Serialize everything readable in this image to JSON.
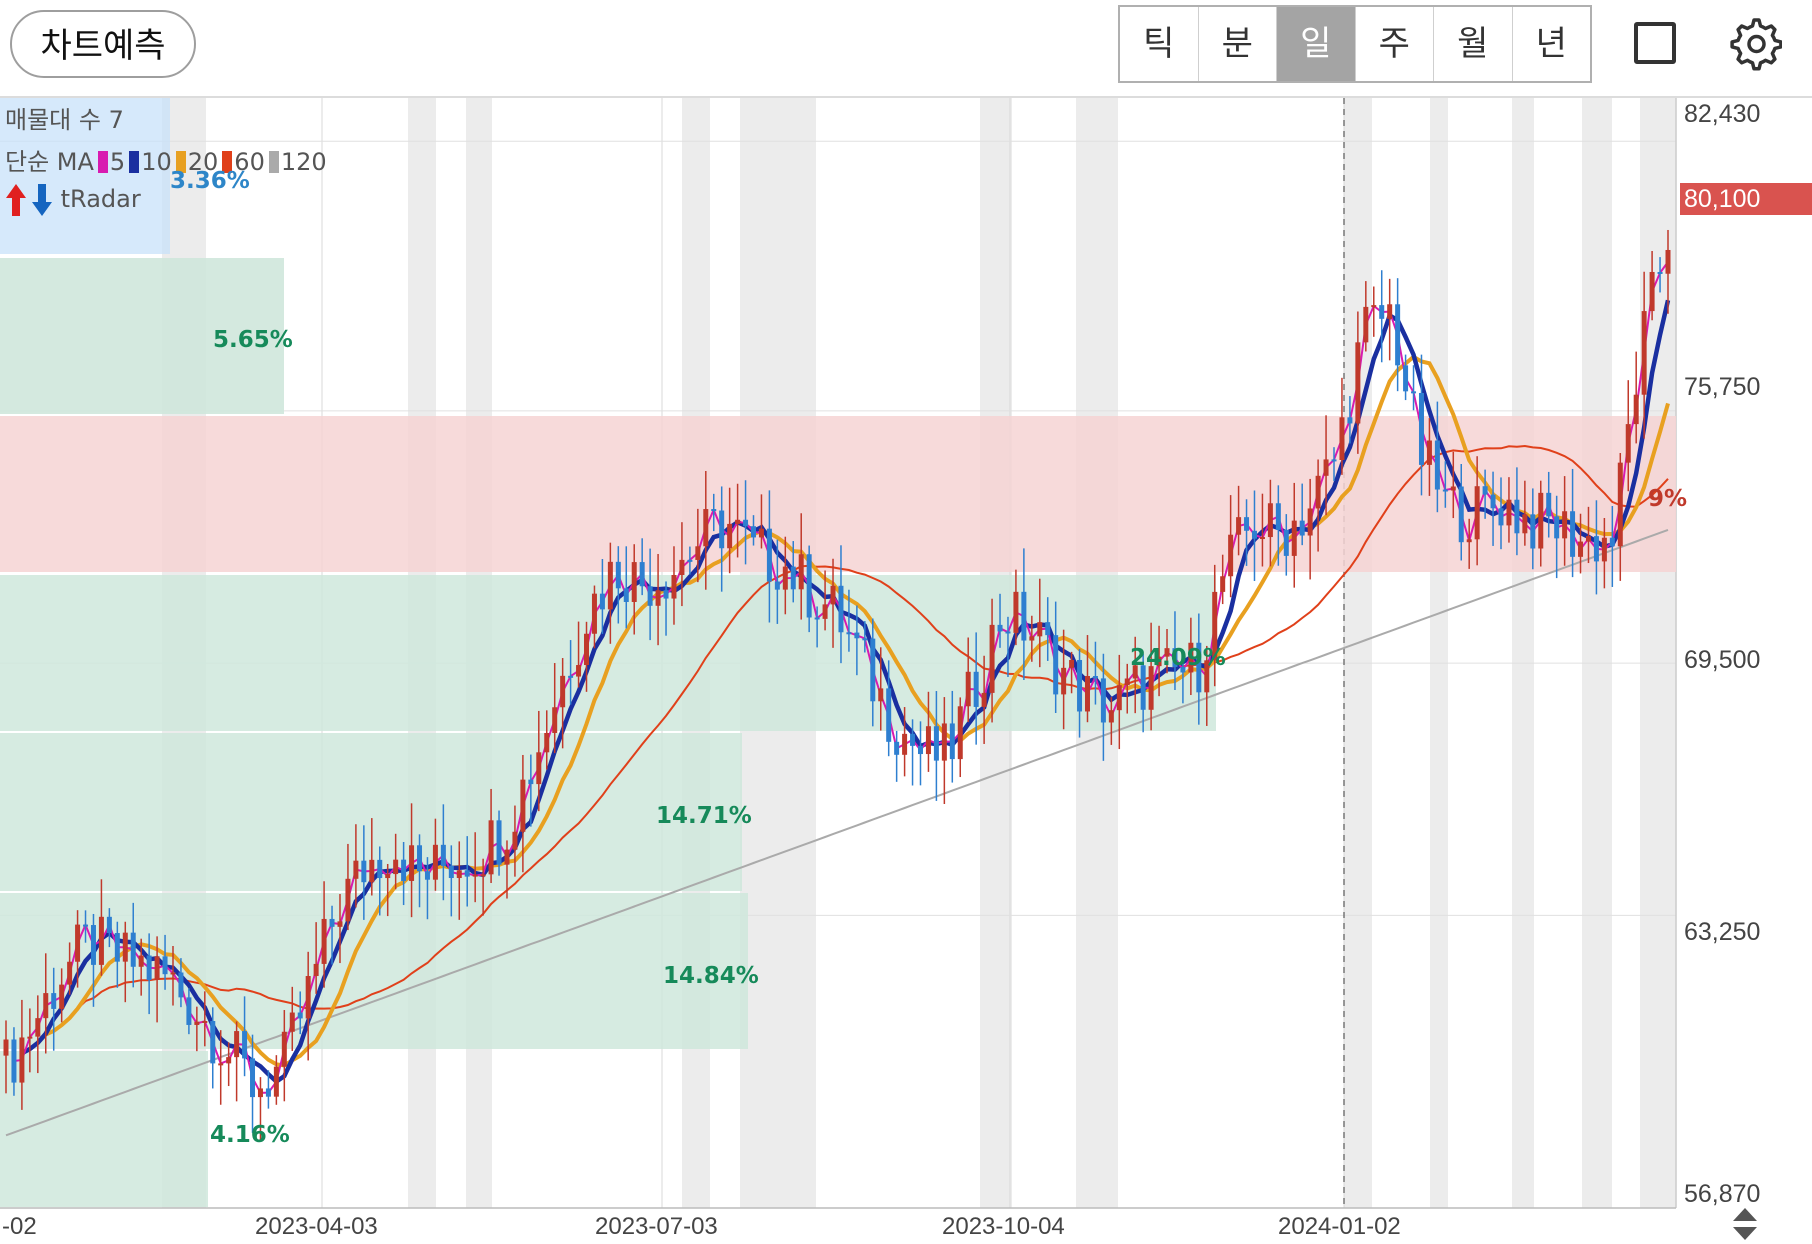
{
  "toolbar": {
    "predict_label": "차트예측",
    "periods": [
      "틱",
      "분",
      "일",
      "주",
      "월",
      "년"
    ],
    "active_period": "일",
    "layout_icon": "square-icon",
    "settings_icon": "gear-icon"
  },
  "legend": {
    "volume_profile": "매물대 수 7",
    "ma_prefix": "단순 MA",
    "ma_periods": [
      "5",
      "10",
      "20",
      "60",
      "120"
    ],
    "radar_label": "tRadar",
    "radar_icons": [
      "arrow-up-icon",
      "arrow-down-icon"
    ]
  },
  "price_axis": {
    "ticks": [
      "82,430",
      "75,750",
      "69,500",
      "63,250",
      "56,870"
    ]
  },
  "current_price": "80,100",
  "date_axis": {
    "labels": [
      "-02",
      "2023-04-03",
      "2023-07-03",
      "2023-10-04",
      "2024-01-02"
    ]
  },
  "profile_labels": [
    "3.36%",
    "5.65%",
    "14.71%",
    "14.84%",
    "4.16%",
    "24.09%",
    "9%"
  ],
  "colors": {
    "up": "#c0392b",
    "down": "#2e7fd0",
    "ma5": "#d81bb0",
    "ma10": "#1a2fa0",
    "ma20": "#e8a020",
    "ma60": "#e0401a",
    "ma120": "#aaaaaa",
    "profile_green": "#cfe7dc",
    "profile_red": "#f6d4d4",
    "current_price_bg": "#d9534f"
  },
  "chart_data": {
    "type": "candlestick",
    "title": "",
    "xlabel": "",
    "ylabel": "",
    "ylim": [
      56870,
      82430
    ],
    "x": [
      "-02",
      "2023-04-03",
      "2023-07-03",
      "2023-10-04",
      "2024-01-02"
    ],
    "moving_averages": [
      "5",
      "10",
      "20",
      "60",
      "120"
    ],
    "closes": [
      59500,
      60600,
      61800,
      62600,
      62200,
      62000,
      61600,
      60800,
      59900,
      59000,
      59500,
      61500,
      63500,
      64500,
      65000,
      64200,
      64600,
      64800,
      65400,
      67000,
      69000,
      70800,
      71900,
      71500,
      71800,
      72500,
      73000,
      72200,
      72000,
      71300,
      70700,
      69400,
      68100,
      67300,
      67200,
      69000,
      70800,
      70300,
      69400,
      68700,
      68400,
      69000,
      69200,
      69400,
      71800,
      73000,
      72700,
      73300,
      74600,
      77700,
      78200,
      74800,
      73400,
      73200,
      73500,
      73000,
      72900,
      72500,
      72600,
      77200,
      80100
    ],
    "current_price": 80100
  }
}
